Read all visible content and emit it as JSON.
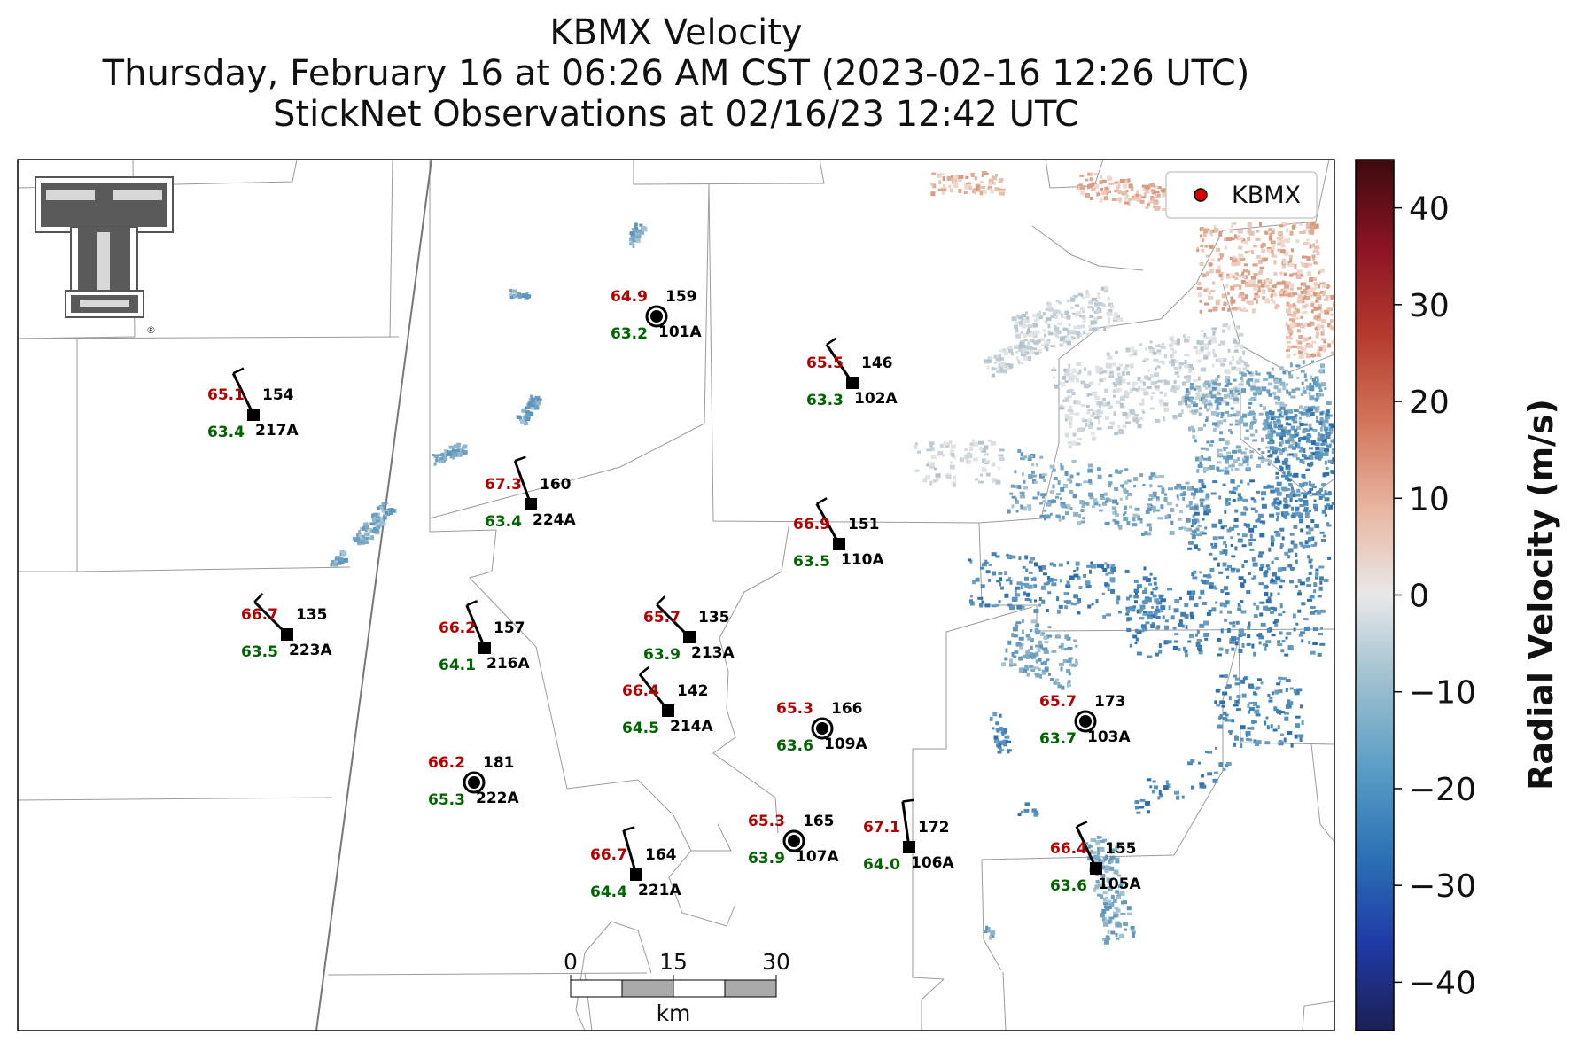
{
  "title": {
    "line1": "KBMX Velocity",
    "line2": "Thursday, February 16 at 06:26 AM CST (2023-02-16 12:26 UTC)",
    "line3": "StickNet Observations at 02/16/23 12:42 UTC"
  },
  "legend": {
    "label": "KBMX",
    "marker_color": "#e00000"
  },
  "colorbar": {
    "label": "Radial Velocity (m/s)",
    "min": -45,
    "max": 45,
    "ticks": [
      "40",
      "30",
      "20",
      "10",
      "0",
      "−10",
      "−20",
      "−30",
      "−40"
    ],
    "tick_values": [
      40,
      30,
      20,
      10,
      0,
      -10,
      -20,
      -30,
      -40
    ],
    "stops": [
      "#1c1f55",
      "#1f3aa6",
      "#2b71b5",
      "#5a9dc5",
      "#9dbfcf",
      "#e8e8e8",
      "#e8b5a0",
      "#d2745a",
      "#b5392e",
      "#8a1424",
      "#3c0a0e"
    ]
  },
  "scale_bar": {
    "labels": [
      "0",
      "15",
      "30"
    ],
    "unit": "km"
  },
  "logo": {
    "name": "texas-tech-double-t-logo",
    "mark": "®"
  },
  "stations": [
    {
      "id": "101A",
      "temp": "64.9",
      "dew": "63.2",
      "dir": "159",
      "shape": "circle"
    },
    {
      "id": "217A",
      "temp": "65.1",
      "dew": "63.4",
      "dir": "154",
      "shape": "square"
    },
    {
      "id": "102A",
      "temp": "65.5",
      "dew": "63.3",
      "dir": "146",
      "shape": "square"
    },
    {
      "id": "224A",
      "temp": "67.3",
      "dew": "63.4",
      "dir": "160",
      "shape": "square"
    },
    {
      "id": "110A",
      "temp": "66.9",
      "dew": "63.5",
      "dir": "151",
      "shape": "square"
    },
    {
      "id": "223A",
      "temp": "66.7",
      "dew": "63.5",
      "dir": "135",
      "shape": "square"
    },
    {
      "id": "216A",
      "temp": "66.2",
      "dew": "64.1",
      "dir": "157",
      "shape": "square"
    },
    {
      "id": "213A",
      "temp": "65.7",
      "dew": "63.9",
      "dir": "135",
      "shape": "square"
    },
    {
      "id": "214A",
      "temp": "66.4",
      "dew": "64.5",
      "dir": "142",
      "shape": "square"
    },
    {
      "id": "109A",
      "temp": "65.3",
      "dew": "63.6",
      "dir": "166",
      "shape": "circle"
    },
    {
      "id": "103A",
      "temp": "65.7",
      "dew": "63.7",
      "dir": "173",
      "shape": "circle"
    },
    {
      "id": "222A",
      "temp": "66.2",
      "dew": "65.3",
      "dir": "181",
      "shape": "circle"
    },
    {
      "id": "107A",
      "temp": "65.3",
      "dew": "63.9",
      "dir": "165",
      "shape": "circle"
    },
    {
      "id": "106A",
      "temp": "67.1",
      "dew": "64.0",
      "dir": "172",
      "shape": "square"
    },
    {
      "id": "221A",
      "temp": "66.7",
      "dew": "64.4",
      "dir": "164",
      "shape": "square"
    },
    {
      "id": "105A",
      "temp": "66.4",
      "dew": "63.6",
      "dir": "155",
      "shape": "square"
    }
  ]
}
